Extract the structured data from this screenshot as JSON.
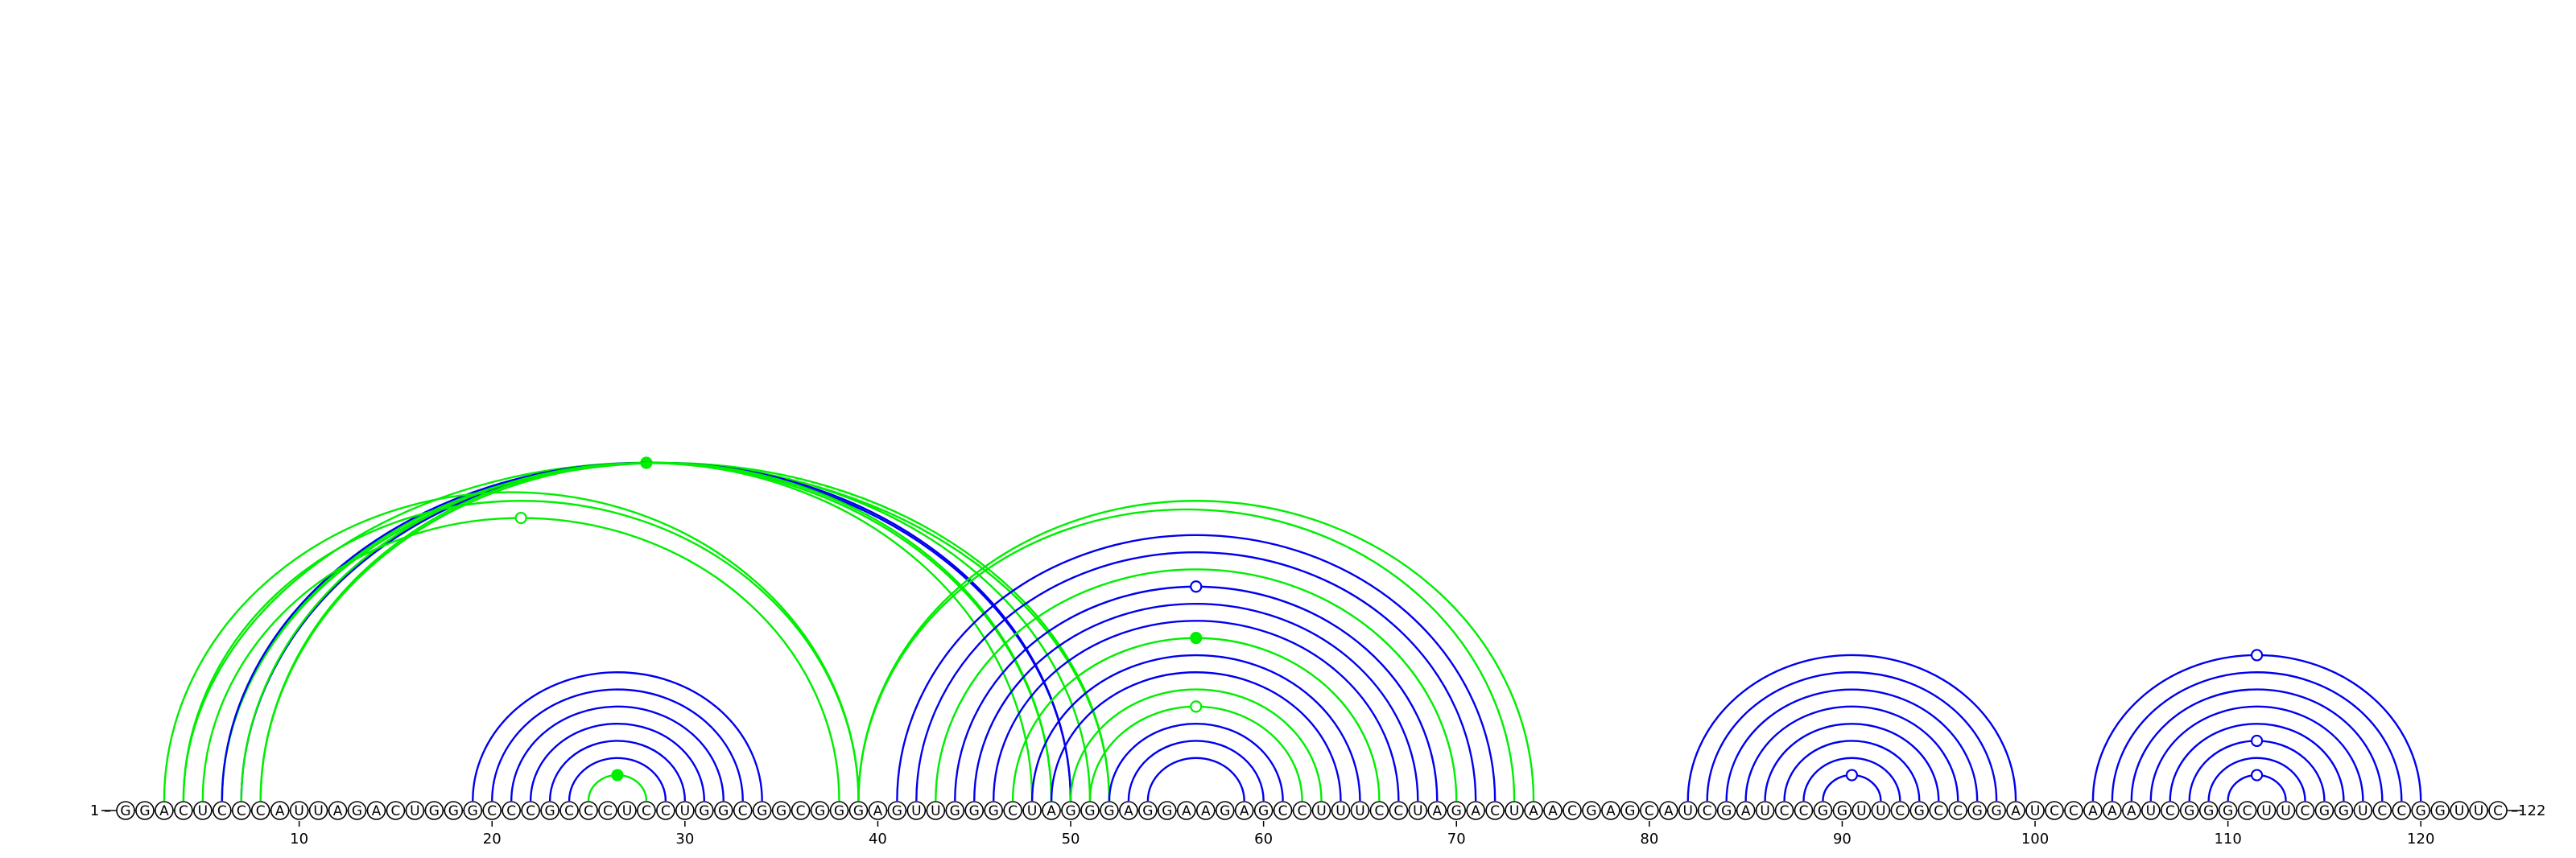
{
  "diagram": {
    "sequence": "GGACUCCCAUUAGACUGGGCCCGCCCUCCUGGCGGCGGGAGUUGGGCUAGGGAGGAAGAGCCUUUCCUAGACUAACGAGCAUCGAUCCGGUUCGCCGGAUCCAAAUCGGGCUUCGGUCCGGUUC",
    "start_label": "1",
    "end_label": "122",
    "ticks": [
      "10",
      "20",
      "30",
      "40",
      "50",
      "60",
      "70",
      "80",
      "90",
      "100",
      "110",
      "120"
    ],
    "colors": {
      "blue": "#0000ee",
      "green": "#00ee00",
      "nucleotide_fill": "#ffffff",
      "outline": "#000000"
    },
    "arcs": [
      {
        "i": 25,
        "j": 28,
        "color": "green",
        "marker": "filled"
      },
      {
        "i": 24,
        "j": 29,
        "color": "blue"
      },
      {
        "i": 23,
        "j": 30,
        "color": "blue"
      },
      {
        "i": 22,
        "j": 31,
        "color": "blue"
      },
      {
        "i": 21,
        "j": 32,
        "color": "blue"
      },
      {
        "i": 20,
        "j": 33,
        "color": "blue"
      },
      {
        "i": 19,
        "j": 34,
        "color": "blue"
      },
      {
        "i": 4,
        "j": 52,
        "color": "green",
        "marker": "filled"
      },
      {
        "i": 6,
        "j": 51,
        "color": "green"
      },
      {
        "i": 6,
        "j": 52,
        "color": "green"
      },
      {
        "i": 6,
        "j": 50,
        "color": "blue"
      },
      {
        "i": 7,
        "j": 50,
        "color": "blue"
      },
      {
        "i": 7,
        "j": 49,
        "color": "green"
      },
      {
        "i": 8,
        "j": 48,
        "color": "green"
      },
      {
        "i": 8,
        "j": 49,
        "color": "green"
      },
      {
        "i": 5,
        "j": 38,
        "color": "green",
        "marker": "open"
      },
      {
        "i": 4,
        "j": 39,
        "color": "green"
      },
      {
        "i": 3,
        "j": 39,
        "color": "green"
      },
      {
        "i": 39,
        "j": 74,
        "color": "green"
      },
      {
        "i": 39,
        "j": 73,
        "color": "green"
      },
      {
        "i": 41,
        "j": 72,
        "color": "blue"
      },
      {
        "i": 42,
        "j": 71,
        "color": "blue"
      },
      {
        "i": 43,
        "j": 70,
        "color": "green"
      },
      {
        "i": 44,
        "j": 69,
        "color": "blue",
        "marker": "open"
      },
      {
        "i": 45,
        "j": 68,
        "color": "blue"
      },
      {
        "i": 46,
        "j": 67,
        "color": "blue"
      },
      {
        "i": 47,
        "j": 66,
        "color": "green",
        "marker": "filled"
      },
      {
        "i": 48,
        "j": 65,
        "color": "blue"
      },
      {
        "i": 49,
        "j": 64,
        "color": "blue"
      },
      {
        "i": 50,
        "j": 63,
        "color": "green"
      },
      {
        "i": 51,
        "j": 62,
        "color": "green",
        "marker": "open"
      },
      {
        "i": 52,
        "j": 61,
        "color": "blue"
      },
      {
        "i": 53,
        "j": 60,
        "color": "blue"
      },
      {
        "i": 54,
        "j": 59,
        "color": "blue"
      },
      {
        "i": 82,
        "j": 99,
        "color": "blue"
      },
      {
        "i": 83,
        "j": 98,
        "color": "blue"
      },
      {
        "i": 84,
        "j": 97,
        "color": "blue"
      },
      {
        "i": 85,
        "j": 96,
        "color": "blue"
      },
      {
        "i": 86,
        "j": 95,
        "color": "blue"
      },
      {
        "i": 87,
        "j": 94,
        "color": "blue"
      },
      {
        "i": 88,
        "j": 93,
        "color": "blue"
      },
      {
        "i": 89,
        "j": 92,
        "color": "blue",
        "marker": "open"
      },
      {
        "i": 103,
        "j": 120,
        "color": "blue",
        "marker": "open"
      },
      {
        "i": 104,
        "j": 119,
        "color": "blue"
      },
      {
        "i": 105,
        "j": 118,
        "color": "blue"
      },
      {
        "i": 106,
        "j": 117,
        "color": "blue"
      },
      {
        "i": 107,
        "j": 116,
        "color": "blue"
      },
      {
        "i": 108,
        "j": 115,
        "color": "blue",
        "marker": "open"
      },
      {
        "i": 109,
        "j": 114,
        "color": "blue"
      },
      {
        "i": 110,
        "j": 113,
        "color": "blue",
        "marker": "open"
      }
    ]
  }
}
